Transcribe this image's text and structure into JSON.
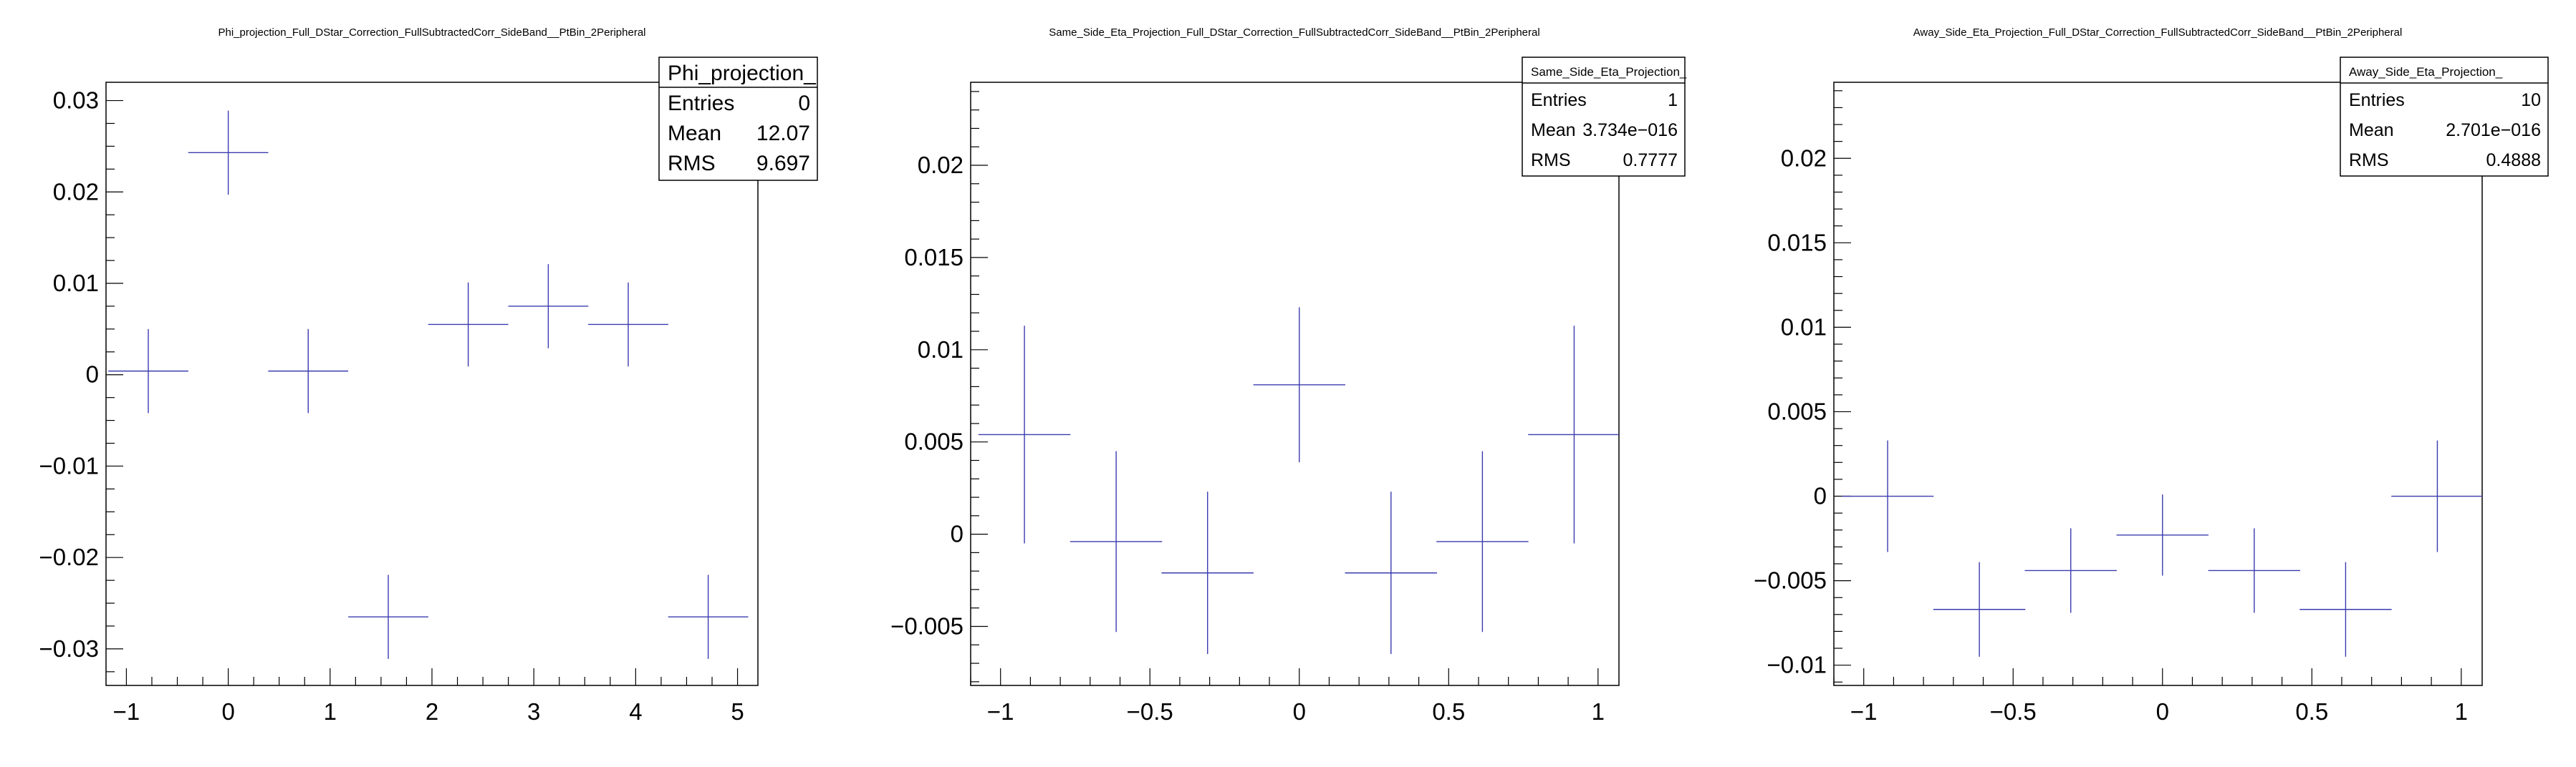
{
  "chart_data": [
    {
      "type": "scatter",
      "title": "Phi_projection_Full_DStar_Correction_FullSubtractedCorr_SideBand__PtBin_2Peripheral",
      "xlim": [
        -1.2,
        5.2
      ],
      "ylim": [
        -0.034,
        0.032
      ],
      "xticks": [
        -1,
        0,
        1,
        2,
        3,
        4,
        5
      ],
      "yticks": [
        -0.03,
        -0.02,
        -0.01,
        0,
        0.01,
        0.02,
        0.03
      ],
      "xtick_labels": [
        "−1",
        "0",
        "1",
        "2",
        "3",
        "4",
        "5"
      ],
      "ytick_labels": [
        "−0.03",
        "−0.02",
        "−0.01",
        "0",
        "0.01",
        "0.02",
        "0.03"
      ],
      "x_minor": 4,
      "y_minor": 4,
      "points": [
        {
          "x": -0.785,
          "y": 0.0004,
          "xerr": 0.393,
          "yerr": 0.0046
        },
        {
          "x": 0.0,
          "y": 0.0243,
          "xerr": 0.393,
          "yerr": 0.0046
        },
        {
          "x": 0.785,
          "y": 0.0004,
          "xerr": 0.393,
          "yerr": 0.0046
        },
        {
          "x": 1.571,
          "y": -0.0265,
          "xerr": 0.393,
          "yerr": 0.0046
        },
        {
          "x": 2.356,
          "y": 0.0055,
          "xerr": 0.393,
          "yerr": 0.0046
        },
        {
          "x": 3.142,
          "y": 0.0075,
          "xerr": 0.393,
          "yerr": 0.0046
        },
        {
          "x": 3.927,
          "y": 0.0055,
          "xerr": 0.393,
          "yerr": 0.0046
        },
        {
          "x": 4.712,
          "y": -0.0265,
          "xerr": 0.393,
          "yerr": 0.0046
        }
      ],
      "stats": {
        "name": "Phi_projection_",
        "rows": [
          {
            "label": "Entries",
            "value": "0"
          },
          {
            "label": "Mean",
            "value": "12.07"
          },
          {
            "label": "RMS",
            "value": "9.697"
          }
        ]
      }
    },
    {
      "type": "scatter",
      "title": "Same_Side_Eta_Projection_Full_DStar_Correction_FullSubtractedCorr_SideBand__PtBin_2Peripheral",
      "xlim": [
        -1.1,
        1.07
      ],
      "ylim": [
        -0.0082,
        0.0245
      ],
      "xticks": [
        -1,
        -0.5,
        0,
        0.5,
        1
      ],
      "yticks": [
        -0.005,
        0,
        0.005,
        0.01,
        0.015,
        0.02
      ],
      "xtick_labels": [
        "−1",
        "−0.5",
        "0",
        "0.5",
        "1"
      ],
      "ytick_labels": [
        "−0.005",
        "0",
        "0.005",
        "0.01",
        "0.015",
        "0.02"
      ],
      "x_minor": 5,
      "y_minor": 5,
      "points": [
        {
          "x": -0.92,
          "y": 0.0054,
          "xerr": 0.154,
          "yerr": 0.0059
        },
        {
          "x": -0.613,
          "y": -0.0004,
          "xerr": 0.154,
          "yerr": 0.0049
        },
        {
          "x": -0.307,
          "y": -0.0021,
          "xerr": 0.154,
          "yerr": 0.0044
        },
        {
          "x": 0.0,
          "y": 0.0081,
          "xerr": 0.154,
          "yerr": 0.0042
        },
        {
          "x": 0.307,
          "y": -0.0021,
          "xerr": 0.154,
          "yerr": 0.0044
        },
        {
          "x": 0.613,
          "y": -0.0004,
          "xerr": 0.154,
          "yerr": 0.0049
        },
        {
          "x": 0.92,
          "y": 0.0054,
          "xerr": 0.154,
          "yerr": 0.0059
        }
      ],
      "stats": {
        "name": "Same_Side_Eta_Projection_",
        "rows": [
          {
            "label": "Entries",
            "value": "1"
          },
          {
            "label": "Mean",
            "value": "3.734e−016"
          },
          {
            "label": "RMS",
            "value": "0.7777"
          }
        ]
      }
    },
    {
      "type": "scatter",
      "title": "Away_Side_Eta_Projection_Full_DStar_Correction_FullSubtractedCorr_SideBand__PtBin_2Peripheral",
      "xlim": [
        -1.1,
        1.07
      ],
      "ylim": [
        -0.0112,
        0.0245
      ],
      "xticks": [
        -1,
        -0.5,
        0,
        0.5,
        1
      ],
      "yticks": [
        -0.01,
        -0.005,
        0,
        0.005,
        0.01,
        0.015,
        0.02
      ],
      "xtick_labels": [
        "−1",
        "−0.5",
        "0",
        "0.5",
        "1"
      ],
      "ytick_labels": [
        "−0.01",
        "−0.005",
        "0",
        "0.005",
        "0.01",
        "0.015",
        "0.02"
      ],
      "x_minor": 5,
      "y_minor": 5,
      "points": [
        {
          "x": -0.92,
          "y": 0.0,
          "xerr": 0.154,
          "yerr": 0.0033
        },
        {
          "x": -0.613,
          "y": -0.0067,
          "xerr": 0.154,
          "yerr": 0.0028
        },
        {
          "x": -0.307,
          "y": -0.0044,
          "xerr": 0.154,
          "yerr": 0.0025
        },
        {
          "x": 0.0,
          "y": -0.0023,
          "xerr": 0.154,
          "yerr": 0.0024
        },
        {
          "x": 0.307,
          "y": -0.0044,
          "xerr": 0.154,
          "yerr": 0.0025
        },
        {
          "x": 0.613,
          "y": -0.0067,
          "xerr": 0.154,
          "yerr": 0.0028
        },
        {
          "x": 0.92,
          "y": 0.0,
          "xerr": 0.154,
          "yerr": 0.0033
        }
      ],
      "stats": {
        "name": "Away_Side_Eta_Projection_",
        "rows": [
          {
            "label": "Entries",
            "value": "10"
          },
          {
            "label": "Mean",
            "value": "2.701e−016"
          },
          {
            "label": "RMS",
            "value": "0.4888"
          }
        ]
      }
    }
  ]
}
